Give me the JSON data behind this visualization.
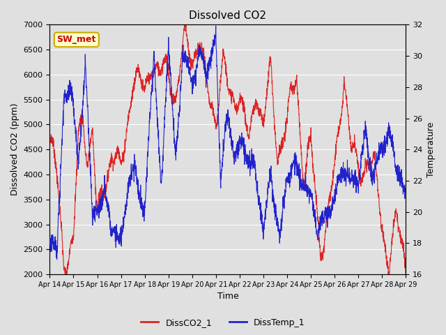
{
  "title": "Dissolved CO2",
  "xlabel": "Time",
  "ylabel_left": "Dissolved CO2 (ppm)",
  "ylabel_right": "Temperature",
  "annotation": "SW_met",
  "ylim_left": [
    2000,
    7000
  ],
  "ylim_right": [
    16,
    32
  ],
  "yticks_left": [
    2000,
    2500,
    3000,
    3500,
    4000,
    4500,
    5000,
    5500,
    6000,
    6500,
    7000
  ],
  "yticks_right": [
    16,
    18,
    20,
    22,
    24,
    26,
    28,
    30,
    32
  ],
  "xtick_labels": [
    "Apr 14",
    "Apr 15",
    "Apr 16",
    "Apr 17",
    "Apr 18",
    "Apr 19",
    "Apr 20",
    "Apr 21",
    "Apr 22",
    "Apr 23",
    "Apr 24",
    "Apr 25",
    "Apr 26",
    "Apr 27",
    "Apr 28",
    "Apr 29"
  ],
  "color_co2": "#dd2222",
  "color_temp": "#2222cc",
  "legend_co2": "DissCO2_1",
  "legend_temp": "DissTemp_1",
  "background_color": "#e0e0e0",
  "annotation_bg": "#ffffcc",
  "annotation_border": "#ccaa00",
  "annotation_text_color": "#cc0000",
  "title_fontsize": 11,
  "axis_fontsize": 9,
  "tick_fontsize": 8,
  "legend_fontsize": 9
}
